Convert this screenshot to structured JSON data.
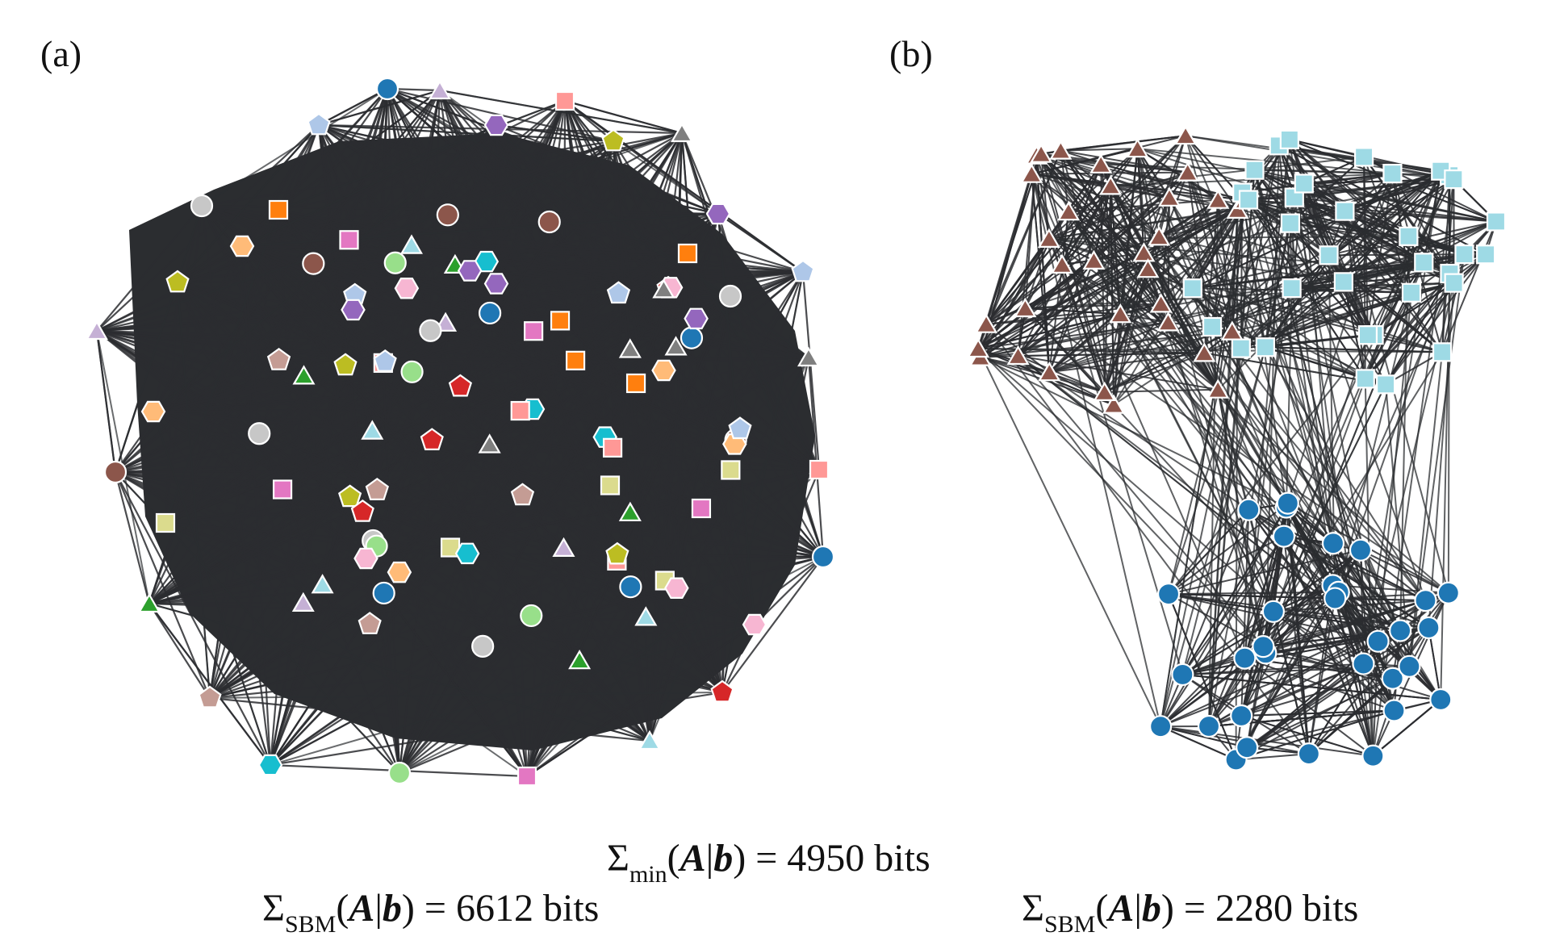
{
  "panels": [
    {
      "id": "a",
      "label": "(a)"
    },
    {
      "id": "b",
      "label": "(b)"
    }
  ],
  "equations": {
    "minimum": {
      "symbol": "Σ",
      "subscript": "min",
      "arg_a": "A",
      "bar": "|",
      "arg_b": "b",
      "rhs": "= 4950 bits"
    },
    "sbm_a": {
      "symbol": "Σ",
      "subscript": "SBM",
      "arg_a": "A",
      "bar": "|",
      "arg_b": "b",
      "rhs": "= 6612 bits"
    },
    "sbm_b": {
      "symbol": "Σ",
      "subscript": "SBM",
      "arg_a": "A",
      "bar": "|",
      "arg_b": "b",
      "rhs": "= 2280 bits"
    }
  },
  "colors": {
    "edge": "#2b2d30",
    "node_stroke": "#ffffff",
    "palette": [
      "#1f77b4",
      "#aec7e8",
      "#ff7f0e",
      "#ffbb78",
      "#2ca02c",
      "#98df8a",
      "#d62728",
      "#ff9896",
      "#9467bd",
      "#c5b0d5",
      "#8c564b",
      "#c49c94",
      "#e377c2",
      "#f7b6d2",
      "#7f7f7f",
      "#c7c7c7",
      "#bcbd22",
      "#dbdb8d",
      "#17becf",
      "#9edae5"
    ],
    "cluster_b": {
      "triangles": "#8c564b",
      "squares": "#9edae5",
      "circles": "#1f77b4"
    }
  },
  "node_shapes": [
    "circle",
    "square",
    "triangle",
    "pentagon",
    "hexagon"
  ],
  "graph_a": {
    "node_count": 100,
    "color_groups": 100
  },
  "graph_b": {
    "groups": [
      {
        "shape": "triangle",
        "color": "#8c564b",
        "count": 34
      },
      {
        "shape": "square",
        "color": "#9edae5",
        "count": 34
      },
      {
        "shape": "circle",
        "color": "#1f77b4",
        "count": 32
      }
    ]
  }
}
